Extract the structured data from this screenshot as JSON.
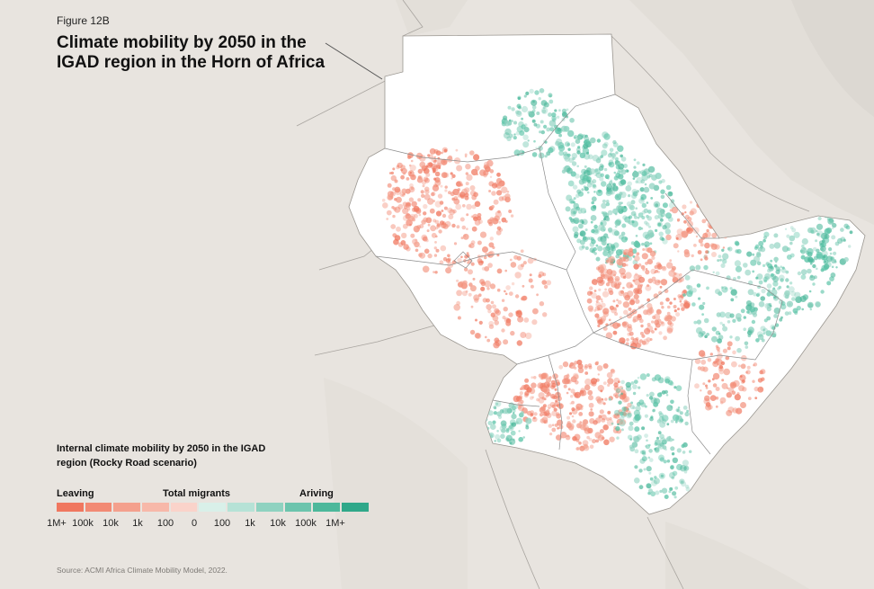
{
  "figure_label": "Figure 12B",
  "title": "Climate mobility by 2050 in the IGAD region in the Horn of Africa",
  "legend": {
    "title": "Internal climate mobility by 2050 in the IGAD region (Rocky Road scenario)",
    "left_label": "Leaving",
    "center_label": "Total migrants",
    "right_label": "Ariving",
    "tick_labels": [
      "1M+",
      "100k",
      "10k",
      "1k",
      "100",
      "0",
      "100",
      "1k",
      "10k",
      "100k",
      "1M+"
    ],
    "swatch_colors": [
      "#f0775f",
      "#f28a74",
      "#f4a08d",
      "#f7b8a9",
      "#fad3ca",
      "#d9f0e9",
      "#b6e2d6",
      "#8fd2c0",
      "#6cc4ad",
      "#4cb89b",
      "#2fa889"
    ]
  },
  "source": "Source: ACMI Africa Climate Mobility Model, 2022.",
  "colors": {
    "background": "#e8e4df",
    "region_fill": "#ffffff",
    "leaving": "#f28a74",
    "arriving": "#5cc4a8",
    "border": "#8c8c8c"
  }
}
